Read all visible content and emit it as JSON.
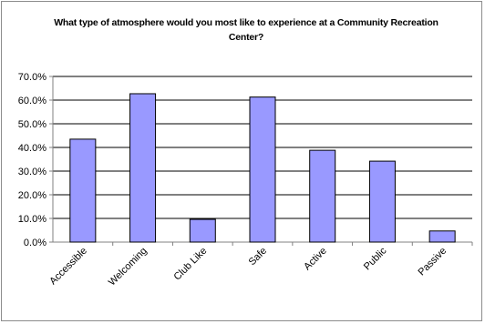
{
  "chart_data": {
    "type": "bar",
    "title": "What type of atmosphere would you most like to experience at a Community Recreation Center?",
    "categories": [
      "Accessible",
      "Welcoming",
      "Club Like",
      "Safe",
      "Active",
      "Public",
      "Passive"
    ],
    "values": [
      43.5,
      62.7,
      9.6,
      61.3,
      38.8,
      34.2,
      4.7
    ],
    "yticks": [
      "0.0%",
      "10.0%",
      "20.0%",
      "30.0%",
      "40.0%",
      "50.0%",
      "60.0%",
      "70.0%"
    ],
    "ylim": [
      0,
      70
    ],
    "grid": true,
    "legend": "none",
    "colors": {
      "bar": "#9999ff",
      "bar_border": "#000000",
      "grid": "#000000",
      "axis": "#808080"
    }
  }
}
